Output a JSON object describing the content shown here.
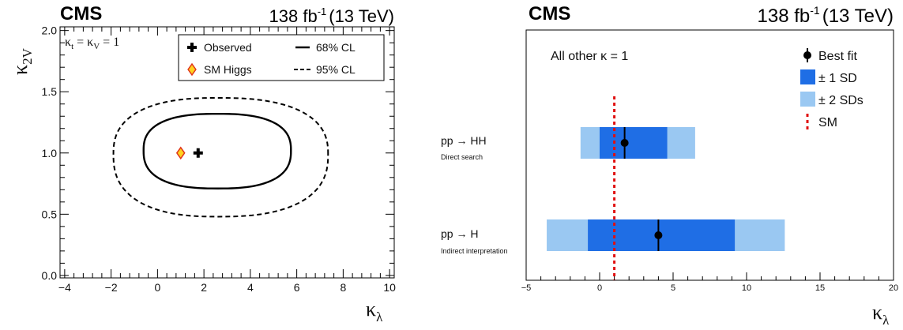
{
  "chart_data": [
    {
      "type": "contour",
      "header": {
        "experiment": "CMS",
        "lumi": "138 fb",
        "lumi_exp": "-1",
        "energy": "(13 TeV)"
      },
      "xlabel": {
        "base": "κ",
        "sub": "λ"
      },
      "ylabel": {
        "base": "κ",
        "sub": "2V"
      },
      "xlim": [
        -4.2,
        10.2
      ],
      "ylim": [
        -0.02,
        2.03
      ],
      "xticks": [
        -4,
        -2,
        0,
        2,
        4,
        6,
        8,
        10
      ],
      "xtick_labels": [
        "−4",
        "−2",
        "0",
        "2",
        "4",
        "6",
        "8",
        "10"
      ],
      "yticks": [
        0.0,
        0.5,
        1.0,
        1.5,
        2.0
      ],
      "ytick_labels": [
        "0.0",
        "0.5",
        "1.0",
        "1.5",
        "2.0"
      ],
      "annotation": {
        "k1": "κ",
        "s1": "t",
        "eq1": " = ",
        "k2": "κ",
        "s2": "V",
        "eq2": " = 1"
      },
      "legend": {
        "observed": "Observed",
        "sm": "SM Higgs",
        "cl68": "68% CL",
        "cl95": "95% CL",
        "placement": "top-right"
      },
      "observed_point": [
        1.75,
        1.0
      ],
      "sm_point": [
        1.0,
        1.0
      ],
      "contour_68": {
        "x_range": [
          -0.6,
          5.75
        ],
        "y_range": [
          0.71,
          1.32
        ],
        "center": [
          2.6,
          1.02
        ]
      },
      "contour_95": {
        "x_range": [
          -1.9,
          7.35
        ],
        "y_range": [
          0.48,
          1.45
        ],
        "center": [
          2.6,
          0.99
        ]
      },
      "colors": {
        "sm_marker_fill": "#ffd21f",
        "sm_marker_edge": "#e0341a"
      }
    },
    {
      "type": "interval",
      "header": {
        "experiment": "CMS",
        "lumi": "138 fb",
        "lumi_exp": "-1",
        "energy": "(13 TeV)"
      },
      "xlabel": {
        "base": "κ",
        "sub": "λ"
      },
      "xlim": [
        -5,
        20
      ],
      "xticks": [
        -5,
        0,
        5,
        10,
        15,
        20
      ],
      "xtick_labels": [
        "−5",
        "0",
        "5",
        "10",
        "15",
        "20"
      ],
      "annotation": "All other κ = 1",
      "legend": {
        "best_fit": "Best fit",
        "sd1": "± 1 SD",
        "sd2": "± 2 SDs",
        "sm": "SM",
        "placement": "top-right"
      },
      "sm_value": 1.0,
      "rows": [
        {
          "label": "pp → HH",
          "sublabel": "Direct search",
          "best": 1.7,
          "sd1": [
            0.0,
            4.6
          ],
          "sd2": [
            -1.3,
            6.5
          ]
        },
        {
          "label": "pp → H",
          "sublabel": "Indirect interpretation",
          "best": 4.0,
          "sd1": [
            -0.8,
            9.2
          ],
          "sd2": [
            -3.6,
            12.6
          ]
        }
      ],
      "colors": {
        "sd1": "#1f6ee5",
        "sd2": "#9ac8f2",
        "sm_line": "#e01010",
        "marker": "#000000"
      }
    }
  ]
}
